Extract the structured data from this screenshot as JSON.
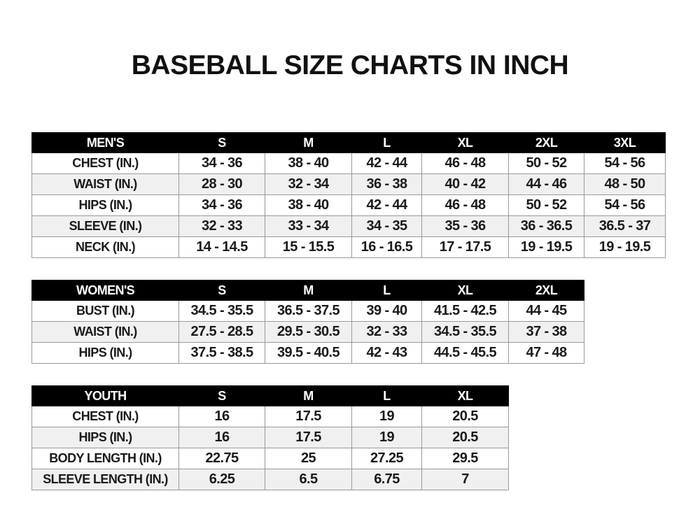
{
  "title": "BASEBALL SIZE CHARTS IN INCH",
  "men": {
    "header": [
      "MEN'S",
      "S",
      "M",
      "L",
      "XL",
      "2XL",
      "3XL"
    ],
    "rows": [
      [
        "CHEST (IN.)",
        "34 - 36",
        "38 - 40",
        "42 - 44",
        "46 - 48",
        "50 - 52",
        "54 - 56"
      ],
      [
        "WAIST (IN.)",
        "28 - 30",
        "32 - 34",
        "36 - 38",
        "40 - 42",
        "44 - 46",
        "48 - 50"
      ],
      [
        "HIPS (IN.)",
        "34 - 36",
        "38 - 40",
        "42 - 44",
        "46 - 48",
        "50 - 52",
        "54 - 56"
      ],
      [
        "SLEEVE (IN.)",
        "32 - 33",
        "33 - 34",
        "34 - 35",
        "35 - 36",
        "36 - 36.5",
        "36.5 - 37"
      ],
      [
        "NECK (IN.)",
        "14 - 14.5",
        "15 - 15.5",
        "16 - 16.5",
        "17 - 17.5",
        "19 - 19.5",
        "19 - 19.5"
      ]
    ]
  },
  "women": {
    "header": [
      "WOMEN'S",
      "S",
      "M",
      "L",
      "XL",
      "2XL"
    ],
    "rows": [
      [
        "BUST (IN.)",
        "34.5 - 35.5",
        "36.5 - 37.5",
        "39 - 40",
        "41.5 - 42.5",
        "44 - 45"
      ],
      [
        "WAIST (IN.)",
        "27.5 - 28.5",
        "29.5 - 30.5",
        "32 - 33",
        "34.5 - 35.5",
        "37 - 38"
      ],
      [
        "HIPS (IN.)",
        "37.5 - 38.5",
        "39.5 - 40.5",
        "42 - 43",
        "44.5 - 45.5",
        "47 - 48"
      ]
    ]
  },
  "youth": {
    "header": [
      "YOUTH",
      "S",
      "M",
      "L",
      "XL"
    ],
    "rows": [
      [
        "CHEST (IN.)",
        "16",
        "17.5",
        "19",
        "20.5"
      ],
      [
        "HIPS (IN.)",
        "16",
        "17.5",
        "19",
        "20.5"
      ],
      [
        "BODY LENGTH (IN.)",
        "22.75",
        "25",
        "27.25",
        "29.5"
      ],
      [
        "SLEEVE LENGTH (IN.)",
        "6.25",
        "6.5",
        "6.75",
        "7"
      ]
    ]
  }
}
